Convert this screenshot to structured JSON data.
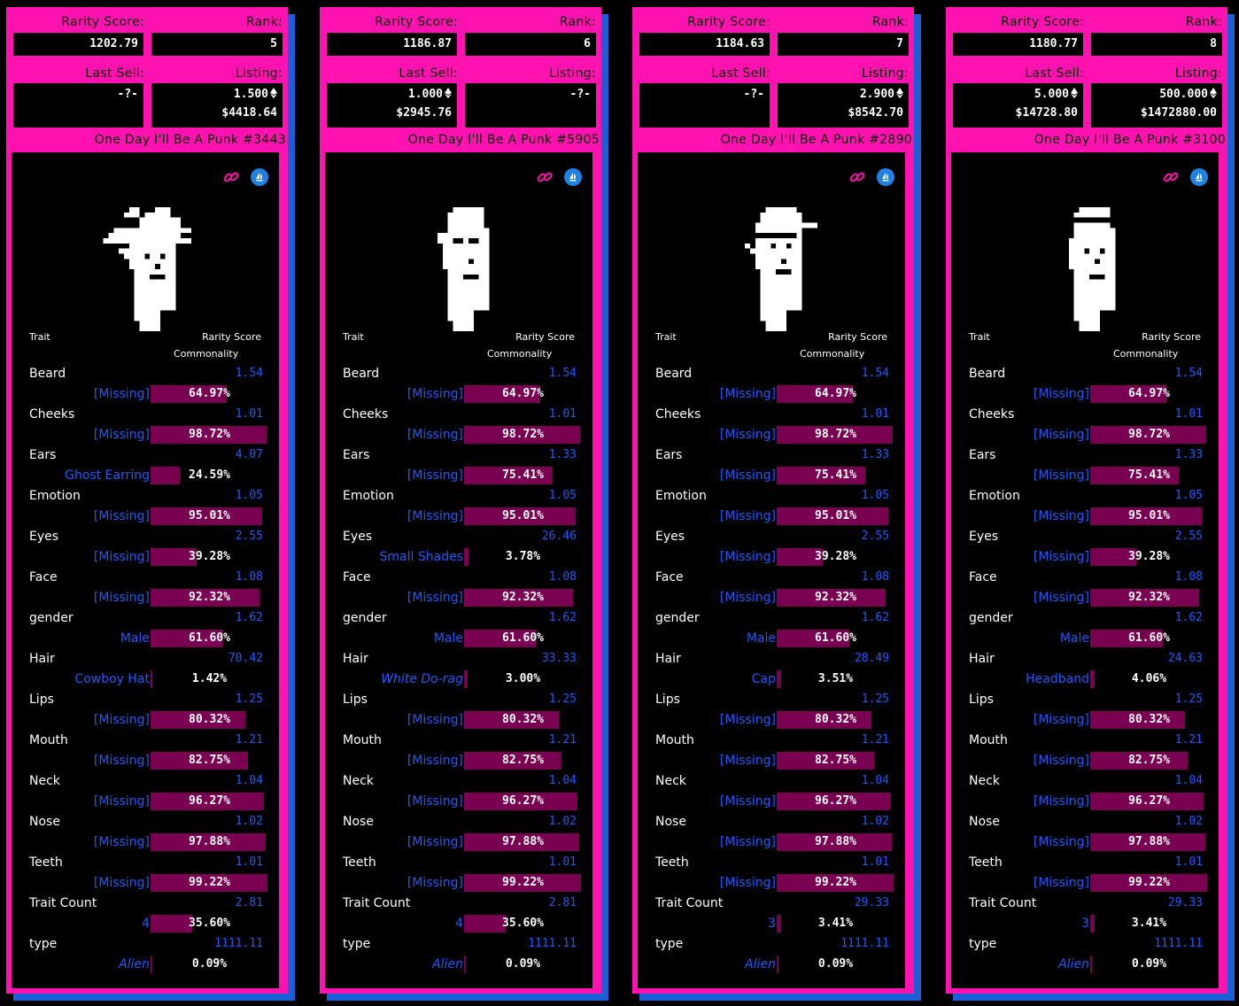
{
  "labels": {
    "rarity_score": "Rarity Score:",
    "rank": "Rank:",
    "last_sell": "Last Sell:",
    "listing": "Listing:",
    "trait_header": "Trait",
    "rarity_header": "Rarity Score",
    "commonality_header": "Commonality"
  },
  "colors": {
    "pink": "#ff12b0",
    "blue": "#1e5bff",
    "bar": "#7a0052",
    "shadow": "#1a5fd6"
  },
  "cards": [
    {
      "rarity_score": "1202.79",
      "rank": "5",
      "last_sell": {
        "eth": "-?-",
        "usd": ""
      },
      "listing": {
        "eth": "1.500",
        "usd": "$4418.64",
        "eth_icon": true
      },
      "last_sell_eth_icon": false,
      "title": "One Day I'll Be A Punk #3443",
      "punk": "cowboy-hat",
      "traits": [
        {
          "name": "Beard",
          "score": "1.54",
          "value": "[Missing]",
          "pct": "64.97%",
          "fill": 0.6497
        },
        {
          "name": "Cheeks",
          "score": "1.01",
          "value": "[Missing]",
          "pct": "98.72%",
          "fill": 0.9872
        },
        {
          "name": "Ears",
          "score": "4.07",
          "value": "Ghost Earring",
          "pct": "24.59%",
          "fill": 0.2459
        },
        {
          "name": "Emotion",
          "score": "1.05",
          "value": "[Missing]",
          "pct": "95.01%",
          "fill": 0.9501
        },
        {
          "name": "Eyes",
          "score": "2.55",
          "value": "[Missing]",
          "pct": "39.28%",
          "fill": 0.3928
        },
        {
          "name": "Face",
          "score": "1.08",
          "value": "[Missing]",
          "pct": "92.32%",
          "fill": 0.9232
        },
        {
          "name": "gender",
          "score": "1.62",
          "value": "Male",
          "pct": "61.60%",
          "fill": 0.616
        },
        {
          "name": "Hair",
          "score": "70.42",
          "value": "Cowboy Hat",
          "pct": "1.42%",
          "fill": 0.0142
        },
        {
          "name": "Lips",
          "score": "1.25",
          "value": "[Missing]",
          "pct": "80.32%",
          "fill": 0.8032
        },
        {
          "name": "Mouth",
          "score": "1.21",
          "value": "[Missing]",
          "pct": "82.75%",
          "fill": 0.8275
        },
        {
          "name": "Neck",
          "score": "1.04",
          "value": "[Missing]",
          "pct": "96.27%",
          "fill": 0.9627
        },
        {
          "name": "Nose",
          "score": "1.02",
          "value": "[Missing]",
          "pct": "97.88%",
          "fill": 0.9788
        },
        {
          "name": "Teeth",
          "score": "1.01",
          "value": "[Missing]",
          "pct": "99.22%",
          "fill": 0.9922
        },
        {
          "name": "Trait Count",
          "score": "2.81",
          "value": "4",
          "pct": "35.60%",
          "fill": 0.356
        },
        {
          "name": "type",
          "score": "1111.11",
          "value": "Alien",
          "pct": "0.09%",
          "fill": 0.0009,
          "italic": true
        }
      ]
    },
    {
      "rarity_score": "1186.87",
      "rank": "6",
      "last_sell": {
        "eth": "1.000",
        "usd": "$2945.76"
      },
      "last_sell_eth_icon": true,
      "listing": {
        "eth": "-?-",
        "usd": "",
        "eth_icon": false
      },
      "title": "One Day I'll Be A Punk #5905",
      "punk": "do-rag",
      "traits": [
        {
          "name": "Beard",
          "score": "1.54",
          "value": "[Missing]",
          "pct": "64.97%",
          "fill": 0.6497
        },
        {
          "name": "Cheeks",
          "score": "1.01",
          "value": "[Missing]",
          "pct": "98.72%",
          "fill": 0.9872
        },
        {
          "name": "Ears",
          "score": "1.33",
          "value": "[Missing]",
          "pct": "75.41%",
          "fill": 0.7541
        },
        {
          "name": "Emotion",
          "score": "1.05",
          "value": "[Missing]",
          "pct": "95.01%",
          "fill": 0.9501
        },
        {
          "name": "Eyes",
          "score": "26.46",
          "value": "Small Shades",
          "pct": "3.78%",
          "fill": 0.0378
        },
        {
          "name": "Face",
          "score": "1.08",
          "value": "[Missing]",
          "pct": "92.32%",
          "fill": 0.9232
        },
        {
          "name": "gender",
          "score": "1.62",
          "value": "Male",
          "pct": "61.60%",
          "fill": 0.616
        },
        {
          "name": "Hair",
          "score": "33.33",
          "value": "White Do-rag",
          "pct": "3.00%",
          "fill": 0.03,
          "italic": true
        },
        {
          "name": "Lips",
          "score": "1.25",
          "value": "[Missing]",
          "pct": "80.32%",
          "fill": 0.8032
        },
        {
          "name": "Mouth",
          "score": "1.21",
          "value": "[Missing]",
          "pct": "82.75%",
          "fill": 0.8275
        },
        {
          "name": "Neck",
          "score": "1.04",
          "value": "[Missing]",
          "pct": "96.27%",
          "fill": 0.9627
        },
        {
          "name": "Nose",
          "score": "1.02",
          "value": "[Missing]",
          "pct": "97.88%",
          "fill": 0.9788
        },
        {
          "name": "Teeth",
          "score": "1.01",
          "value": "[Missing]",
          "pct": "99.22%",
          "fill": 0.9922
        },
        {
          "name": "Trait Count",
          "score": "2.81",
          "value": "4",
          "pct": "35.60%",
          "fill": 0.356
        },
        {
          "name": "type",
          "score": "1111.11",
          "value": "Alien",
          "pct": "0.09%",
          "fill": 0.0009,
          "italic": true
        }
      ]
    },
    {
      "rarity_score": "1184.63",
      "rank": "7",
      "last_sell": {
        "eth": "-?-",
        "usd": ""
      },
      "last_sell_eth_icon": false,
      "listing": {
        "eth": "2.900",
        "usd": "$8542.70",
        "eth_icon": true
      },
      "title": "One Day I'll Be A Punk #2890",
      "punk": "cap",
      "traits": [
        {
          "name": "Beard",
          "score": "1.54",
          "value": "[Missing]",
          "pct": "64.97%",
          "fill": 0.6497
        },
        {
          "name": "Cheeks",
          "score": "1.01",
          "value": "[Missing]",
          "pct": "98.72%",
          "fill": 0.9872
        },
        {
          "name": "Ears",
          "score": "1.33",
          "value": "[Missing]",
          "pct": "75.41%",
          "fill": 0.7541
        },
        {
          "name": "Emotion",
          "score": "1.05",
          "value": "[Missing]",
          "pct": "95.01%",
          "fill": 0.9501
        },
        {
          "name": "Eyes",
          "score": "2.55",
          "value": "[Missing]",
          "pct": "39.28%",
          "fill": 0.3928
        },
        {
          "name": "Face",
          "score": "1.08",
          "value": "[Missing]",
          "pct": "92.32%",
          "fill": 0.9232
        },
        {
          "name": "gender",
          "score": "1.62",
          "value": "Male",
          "pct": "61.60%",
          "fill": 0.616
        },
        {
          "name": "Hair",
          "score": "28.49",
          "value": "Cap",
          "pct": "3.51%",
          "fill": 0.0351
        },
        {
          "name": "Lips",
          "score": "1.25",
          "value": "[Missing]",
          "pct": "80.32%",
          "fill": 0.8032
        },
        {
          "name": "Mouth",
          "score": "1.21",
          "value": "[Missing]",
          "pct": "82.75%",
          "fill": 0.8275
        },
        {
          "name": "Neck",
          "score": "1.04",
          "value": "[Missing]",
          "pct": "96.27%",
          "fill": 0.9627
        },
        {
          "name": "Nose",
          "score": "1.02",
          "value": "[Missing]",
          "pct": "97.88%",
          "fill": 0.9788
        },
        {
          "name": "Teeth",
          "score": "1.01",
          "value": "[Missing]",
          "pct": "99.22%",
          "fill": 0.9922
        },
        {
          "name": "Trait Count",
          "score": "29.33",
          "value": "3",
          "pct": "3.41%",
          "fill": 0.0341
        },
        {
          "name": "type",
          "score": "1111.11",
          "value": "Alien",
          "pct": "0.09%",
          "fill": 0.0009,
          "italic": true
        }
      ]
    },
    {
      "rarity_score": "1180.77",
      "rank": "8",
      "last_sell": {
        "eth": "5.000",
        "usd": "$14728.80"
      },
      "last_sell_eth_icon": true,
      "listing": {
        "eth": "500.000",
        "usd": "$1472880.00",
        "eth_icon": true
      },
      "title": "One Day I'll Be A Punk #3100",
      "punk": "headband",
      "traits": [
        {
          "name": "Beard",
          "score": "1.54",
          "value": "[Missing]",
          "pct": "64.97%",
          "fill": 0.6497
        },
        {
          "name": "Cheeks",
          "score": "1.01",
          "value": "[Missing]",
          "pct": "98.72%",
          "fill": 0.9872
        },
        {
          "name": "Ears",
          "score": "1.33",
          "value": "[Missing]",
          "pct": "75.41%",
          "fill": 0.7541
        },
        {
          "name": "Emotion",
          "score": "1.05",
          "value": "[Missing]",
          "pct": "95.01%",
          "fill": 0.9501
        },
        {
          "name": "Eyes",
          "score": "2.55",
          "value": "[Missing]",
          "pct": "39.28%",
          "fill": 0.3928
        },
        {
          "name": "Face",
          "score": "1.08",
          "value": "[Missing]",
          "pct": "92.32%",
          "fill": 0.9232
        },
        {
          "name": "gender",
          "score": "1.62",
          "value": "Male",
          "pct": "61.60%",
          "fill": 0.616
        },
        {
          "name": "Hair",
          "score": "24.63",
          "value": "Headband",
          "pct": "4.06%",
          "fill": 0.0406
        },
        {
          "name": "Lips",
          "score": "1.25",
          "value": "[Missing]",
          "pct": "80.32%",
          "fill": 0.8032
        },
        {
          "name": "Mouth",
          "score": "1.21",
          "value": "[Missing]",
          "pct": "82.75%",
          "fill": 0.8275
        },
        {
          "name": "Neck",
          "score": "1.04",
          "value": "[Missing]",
          "pct": "96.27%",
          "fill": 0.9627
        },
        {
          "name": "Nose",
          "score": "1.02",
          "value": "[Missing]",
          "pct": "97.88%",
          "fill": 0.9788
        },
        {
          "name": "Teeth",
          "score": "1.01",
          "value": "[Missing]",
          "pct": "99.22%",
          "fill": 0.9922
        },
        {
          "name": "Trait Count",
          "score": "29.33",
          "value": "3",
          "pct": "3.41%",
          "fill": 0.0341
        },
        {
          "name": "type",
          "score": "1111.11",
          "value": "Alien",
          "pct": "0.09%",
          "fill": 0.0009,
          "italic": true
        }
      ]
    }
  ]
}
